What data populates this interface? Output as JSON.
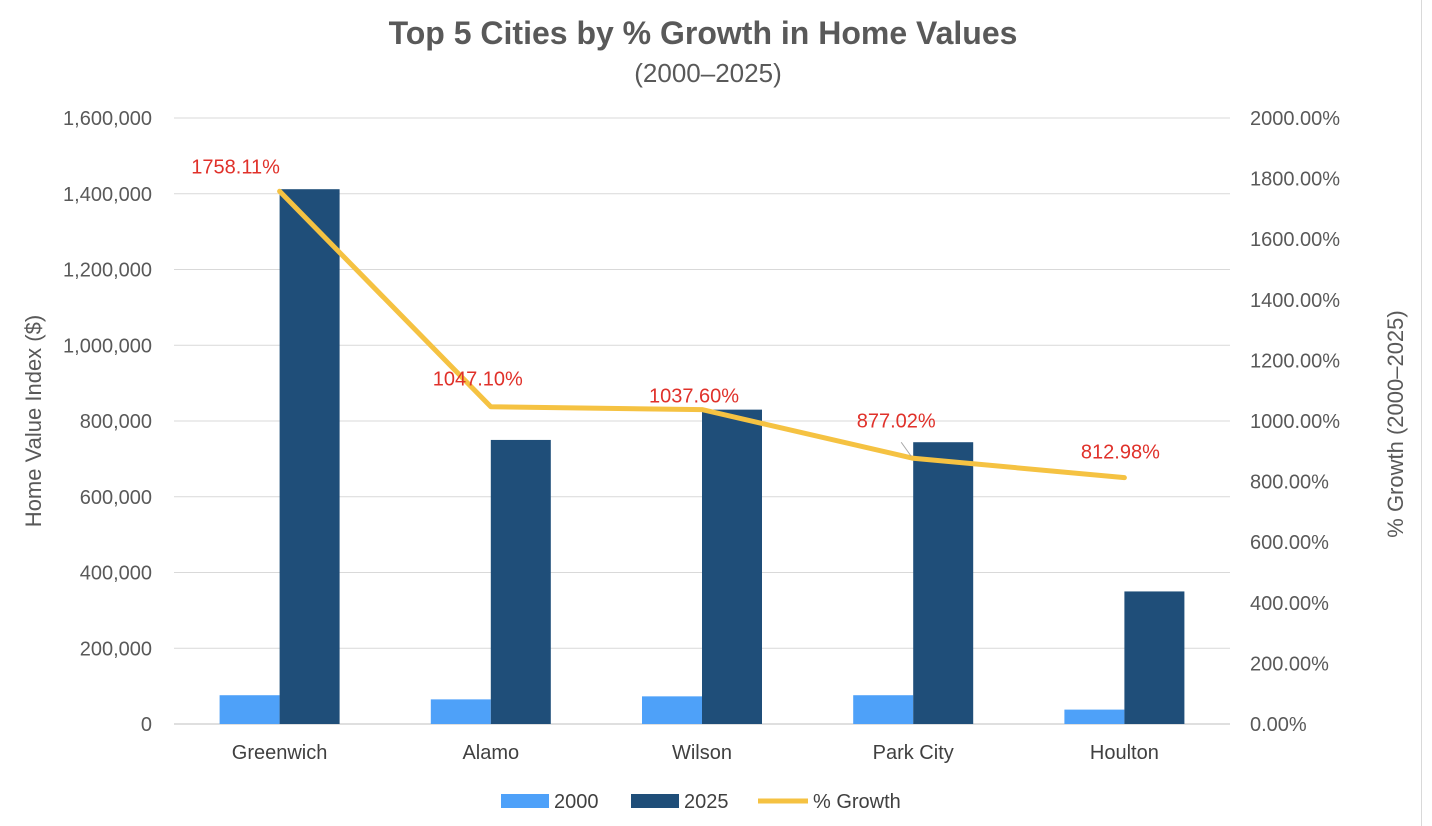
{
  "chart_data": {
    "type": "bar",
    "title": "Top 5 Cities by % Growth in Home Values",
    "subtitle": "(2000–2025)",
    "categories": [
      "Greenwich",
      "Alamo",
      "Wilson",
      "Park City",
      "Houlton"
    ],
    "series": [
      {
        "name": "2000",
        "type": "bar",
        "axis": "left",
        "color": "#4ea1f9",
        "values": [
          76000,
          65000,
          73000,
          76000,
          38000
        ]
      },
      {
        "name": "2025",
        "type": "bar",
        "axis": "left",
        "color": "#1f4e79",
        "values": [
          1412000,
          750000,
          830000,
          744000,
          350000
        ]
      },
      {
        "name": "% Growth",
        "type": "line",
        "axis": "right",
        "color": "#f5c242",
        "values": [
          1758.11,
          1047.1,
          1037.6,
          877.02,
          812.98
        ],
        "data_labels": [
          "1758.11%",
          "1047.10%",
          "1037.60%",
          "877.02%",
          "812.98%"
        ],
        "label_color": "#e0312a"
      }
    ],
    "ylabel": "Home Value Index ($)",
    "ylabel_right": "% Growth (2000–2025)",
    "ylim": [
      0,
      1600000
    ],
    "ylim_right": [
      0,
      2000
    ],
    "yticks": [
      "0",
      "200,000",
      "400,000",
      "600,000",
      "800,000",
      "1,000,000",
      "1,200,000",
      "1,400,000",
      "1,600,000"
    ],
    "yticks_right": [
      "0.00%",
      "200.00%",
      "400.00%",
      "600.00%",
      "800.00%",
      "1000.00%",
      "1200.00%",
      "1400.00%",
      "1600.00%",
      "1800.00%",
      "2000.00%"
    ],
    "grid": true,
    "legend_position": "bottom"
  }
}
